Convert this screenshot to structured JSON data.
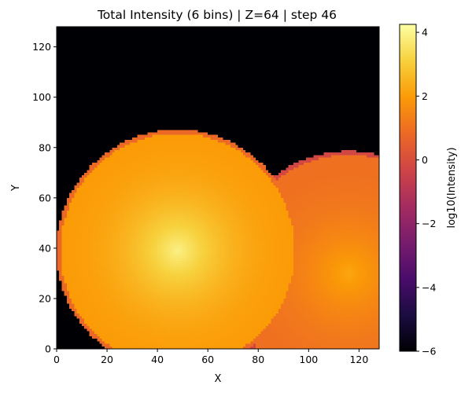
{
  "chart_data": {
    "type": "heatmap",
    "title": "Total Intensity (6 bins) | Z=64 | step 46",
    "xlabel": "X",
    "ylabel": "Y",
    "xlim": [
      0,
      128
    ],
    "ylim": [
      0,
      128
    ],
    "xticks": [
      0,
      20,
      40,
      60,
      80,
      100,
      120
    ],
    "yticks": [
      0,
      20,
      40,
      60,
      80,
      100,
      120
    ],
    "grid": false,
    "colormap": "inferno",
    "colorbar": {
      "label": "log10(Intensity)",
      "range": [
        -6,
        4.25
      ],
      "ticks": [
        -6,
        -4,
        -2,
        0,
        2,
        4
      ]
    },
    "background_log10": -6,
    "sources": [
      {
        "center": [
          48,
          39
        ],
        "radius": 46.5,
        "peak_log10": 3.9,
        "edge_log10": 2.0
      },
      {
        "center": [
          116,
          30
        ],
        "radius": 47,
        "peak_log10": 2.2,
        "edge_log10": 1.0
      }
    ]
  },
  "colors": {
    "background": "#ffffff",
    "axes": "#000000",
    "inferno_stops": [
      "#000004",
      "#1b0c41",
      "#4a0c6b",
      "#781c6d",
      "#a52c60",
      "#cf4446",
      "#ed6925",
      "#fb9b06",
      "#f7d13d",
      "#fcffa4"
    ]
  }
}
